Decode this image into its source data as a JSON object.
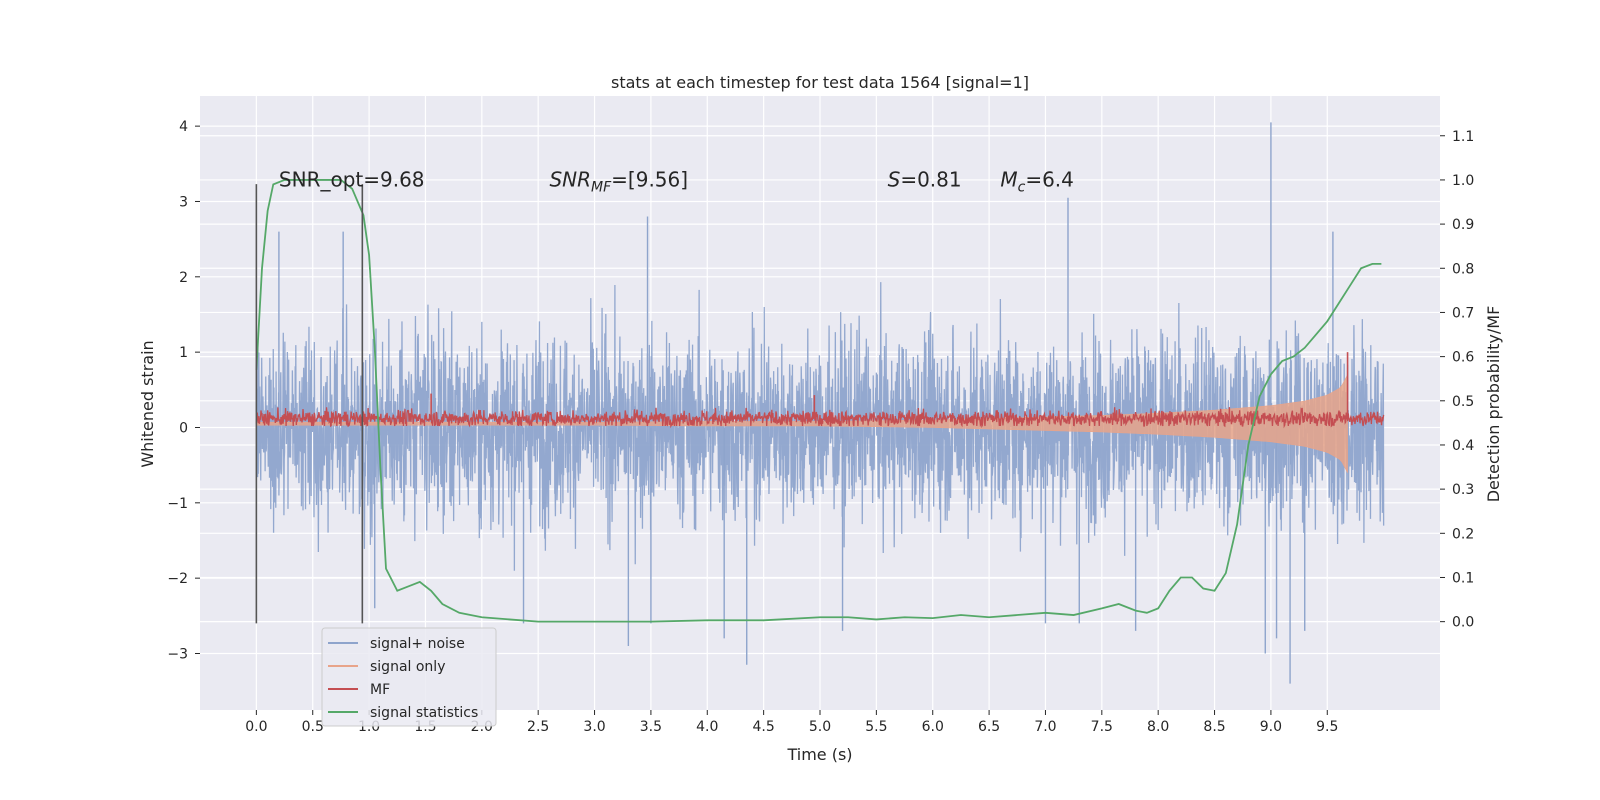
{
  "chart_data": {
    "type": "line",
    "title": "stats at each timestep for test data 1564 [signal=1]",
    "xlabel": "Time (s)",
    "ylabel": "Whitened strain",
    "ylabel_right": "Detection probability/MF",
    "xlim": [
      -0.5,
      10.5
    ],
    "ylim": [
      -3.75,
      4.4
    ],
    "ylim_right": [
      -0.2,
      1.19
    ],
    "xticks": [
      0.0,
      0.5,
      1.0,
      1.5,
      2.0,
      2.5,
      3.0,
      3.5,
      4.0,
      4.5,
      5.0,
      5.5,
      6.0,
      6.5,
      7.0,
      7.5,
      8.0,
      8.5,
      9.0,
      9.5
    ],
    "xtick_labels": [
      "0.0",
      "0.5",
      "1.0",
      "1.5",
      "2.0",
      "2.5",
      "3.0",
      "3.5",
      "4.0",
      "4.5",
      "5.0",
      "5.5",
      "6.0",
      "6.5",
      "7.0",
      "7.5",
      "8.0",
      "8.5",
      "9.0",
      "9.5"
    ],
    "yticks": [
      -3,
      -2,
      -1,
      0,
      1,
      2,
      3,
      4
    ],
    "ytick_labels": [
      "−3",
      "−2",
      "−1",
      "0",
      "1",
      "2",
      "3",
      "4"
    ],
    "yticks_right": [
      0.0,
      0.1,
      0.2,
      0.3,
      0.4,
      0.5,
      0.6,
      0.7,
      0.8,
      0.9,
      1.0,
      1.1
    ],
    "ytick_labels_right": [
      "0.0",
      "0.1",
      "0.2",
      "0.3",
      "0.4",
      "0.5",
      "0.6",
      "0.7",
      "0.8",
      "0.9",
      "1.0",
      "1.1"
    ],
    "grid": true,
    "legend_placement": "lower-left",
    "annotations": [
      {
        "text": "SNR_opt=9.68",
        "x": 0.2,
        "y": 3.2
      },
      {
        "text": "SNR",
        "sub": "MF",
        "suffix": "=[9.56]",
        "x": 2.6,
        "y": 3.2
      },
      {
        "text": "S",
        "suffix": "=0.81",
        "x": 5.6,
        "y": 3.2
      },
      {
        "text": "M",
        "sub": "c",
        "suffix": "=6.4",
        "x": 6.6,
        "y": 3.2
      }
    ],
    "vlines": [
      {
        "x": 0.0,
        "ymin": -2.6,
        "ymax": 3.23
      },
      {
        "x": 0.94,
        "ymin": -2.6,
        "ymax": 3.23
      }
    ],
    "series": [
      {
        "name": "signal+ noise",
        "color": "#8ea4cc",
        "axis": "left",
        "x_range": [
          0.0,
          10.0
        ],
        "envelope_upper": 1.6,
        "envelope_lower": -1.7,
        "extremes": [
          {
            "x": 0.2,
            "y": 2.6
          },
          {
            "x": 0.77,
            "y": 2.6
          },
          {
            "x": 1.05,
            "y": -2.4
          },
          {
            "x": 2.37,
            "y": -2.6
          },
          {
            "x": 3.3,
            "y": -2.9
          },
          {
            "x": 3.47,
            "y": 2.8
          },
          {
            "x": 3.5,
            "y": -2.6
          },
          {
            "x": 4.15,
            "y": -2.8
          },
          {
            "x": 4.35,
            "y": -3.15
          },
          {
            "x": 5.2,
            "y": -2.7
          },
          {
            "x": 7.0,
            "y": -2.6
          },
          {
            "x": 7.2,
            "y": 3.05
          },
          {
            "x": 7.3,
            "y": -2.6
          },
          {
            "x": 7.8,
            "y": -2.7
          },
          {
            "x": 8.95,
            "y": -3.0
          },
          {
            "x": 9.0,
            "y": 4.05
          },
          {
            "x": 9.05,
            "y": -2.8
          },
          {
            "x": 9.17,
            "y": -3.4
          },
          {
            "x": 9.3,
            "y": -2.7
          },
          {
            "x": 9.55,
            "y": 2.6
          }
        ]
      },
      {
        "name": "signal only",
        "color": "#e8a48a",
        "axis": "left",
        "x": [
          0.0,
          1.0,
          2.0,
          3.0,
          4.0,
          5.0,
          5.5,
          6.0,
          6.5,
          7.0,
          7.5,
          8.0,
          8.5,
          9.0,
          9.3,
          9.5,
          9.62,
          9.68
        ],
        "amplitude": [
          0.02,
          0.02,
          0.02,
          0.02,
          0.03,
          0.03,
          0.04,
          0.05,
          0.07,
          0.09,
          0.11,
          0.14,
          0.18,
          0.24,
          0.3,
          0.38,
          0.48,
          0.65
        ]
      },
      {
        "name": "MF",
        "color": "#c44e52",
        "axis": "left",
        "x_range": [
          0.0,
          10.0
        ],
        "baseline": 0.12,
        "band": [
          0.02,
          0.27
        ],
        "spikes": [
          {
            "x": 1.55,
            "y": 0.45
          },
          {
            "x": 4.95,
            "y": 0.43
          },
          {
            "x": 9.68,
            "y": 1.0
          }
        ]
      },
      {
        "name": "signal statistics",
        "color": "#55a868",
        "axis": "right",
        "x": [
          0.0,
          0.05,
          0.1,
          0.15,
          0.25,
          0.4,
          0.6,
          0.75,
          0.85,
          0.95,
          1.0,
          1.05,
          1.1,
          1.15,
          1.25,
          1.35,
          1.45,
          1.55,
          1.65,
          1.8,
          2.0,
          2.5,
          3.0,
          3.5,
          4.0,
          4.5,
          5.0,
          5.25,
          5.5,
          5.75,
          6.0,
          6.25,
          6.5,
          6.75,
          7.0,
          7.25,
          7.5,
          7.65,
          7.8,
          7.9,
          8.0,
          8.1,
          8.2,
          8.3,
          8.4,
          8.5,
          8.6,
          8.7,
          8.8,
          8.9,
          9.0,
          9.1,
          9.2,
          9.3,
          9.4,
          9.5,
          9.6,
          9.7,
          9.8,
          9.9,
          9.98
        ],
        "y": [
          0.57,
          0.8,
          0.93,
          0.99,
          1.0,
          1.0,
          1.0,
          1.0,
          0.98,
          0.92,
          0.83,
          0.62,
          0.35,
          0.12,
          0.07,
          0.08,
          0.09,
          0.07,
          0.04,
          0.02,
          0.01,
          0.0,
          0.0,
          0.0,
          0.003,
          0.003,
          0.01,
          0.01,
          0.005,
          0.01,
          0.008,
          0.015,
          0.01,
          0.015,
          0.02,
          0.015,
          0.03,
          0.04,
          0.025,
          0.02,
          0.03,
          0.07,
          0.1,
          0.1,
          0.075,
          0.07,
          0.11,
          0.22,
          0.4,
          0.51,
          0.56,
          0.59,
          0.6,
          0.62,
          0.65,
          0.68,
          0.72,
          0.76,
          0.8,
          0.81,
          0.81
        ]
      }
    ]
  }
}
